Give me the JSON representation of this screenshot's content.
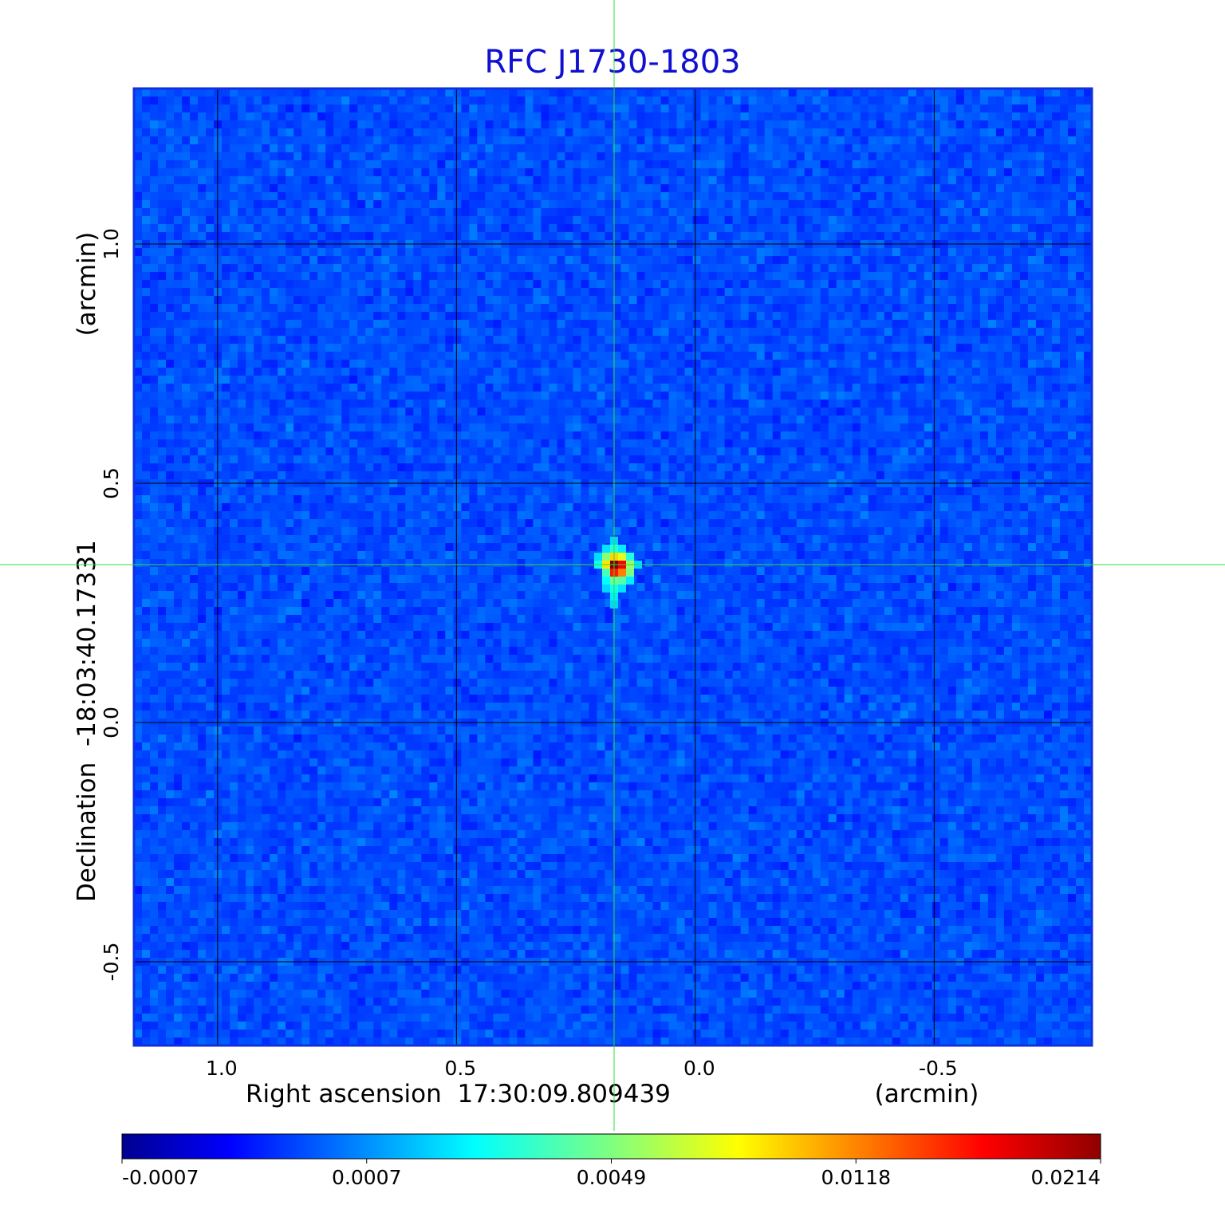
{
  "chart_data": {
    "type": "heatmap",
    "title": "RFC J1730-1803",
    "xlabel": "Right ascension  17:30:09.809439",
    "xunit": "(arcmin)",
    "ylabel": "Declination  -18:03:40.17331",
    "yunit": "(arcmin)",
    "x_ticks": [
      {
        "value": 1.0,
        "label": "1.0"
      },
      {
        "value": 0.5,
        "label": "0.5"
      },
      {
        "value": 0.0,
        "label": "0.0"
      },
      {
        "value": -0.5,
        "label": "-0.5"
      }
    ],
    "y_ticks": [
      {
        "value": 1.0,
        "label": "1.0"
      },
      {
        "value": 0.5,
        "label": "0.5"
      },
      {
        "value": 0.0,
        "label": "0.0"
      },
      {
        "value": -0.5,
        "label": "-0.5"
      }
    ],
    "xlim": [
      1.175,
      -0.83
    ],
    "ylim": [
      -0.675,
      1.325
    ],
    "grid": true,
    "colormap": "jet",
    "colorbar": {
      "labels": [
        "-0.0007",
        "0.0007",
        "0.0049",
        "0.0118",
        "0.0214"
      ],
      "range": [
        -0.0007,
        0.0214
      ]
    },
    "source": {
      "x": 0.17,
      "y": 0.33,
      "peak": 0.0214,
      "pixels": [
        {
          "dx": 0,
          "dy": 0,
          "v": 0.0214
        },
        {
          "dx": 1,
          "dy": 0,
          "v": 0.018
        },
        {
          "dx": 0,
          "dy": 1,
          "v": 0.017
        },
        {
          "dx": 1,
          "dy": 1,
          "v": 0.014
        },
        {
          "dx": -1,
          "dy": 0,
          "v": 0.011
        },
        {
          "dx": 0,
          "dy": -1,
          "v": 0.0115
        },
        {
          "dx": 1,
          "dy": -1,
          "v": 0.0095
        },
        {
          "dx": -1,
          "dy": -1,
          "v": 0.007
        },
        {
          "dx": 2,
          "dy": 0,
          "v": 0.0075
        },
        {
          "dx": 2,
          "dy": 1,
          "v": 0.0065
        },
        {
          "dx": 0,
          "dy": 2,
          "v": 0.006
        },
        {
          "dx": 1,
          "dy": 2,
          "v": 0.0055
        },
        {
          "dx": -1,
          "dy": 1,
          "v": 0.005
        },
        {
          "dx": -2,
          "dy": 0,
          "v": 0.0035
        },
        {
          "dx": 2,
          "dy": -1,
          "v": 0.004
        },
        {
          "dx": 0,
          "dy": -2,
          "v": 0.004
        },
        {
          "dx": -1,
          "dy": 2,
          "v": 0.003
        },
        {
          "dx": 0,
          "dy": 3,
          "v": 0.0035
        },
        {
          "dx": 0,
          "dy": 4,
          "v": 0.0025
        },
        {
          "dx": 1,
          "dy": 3,
          "v": 0.0022
        },
        {
          "dx": 0,
          "dy": 5,
          "v": 0.0018
        },
        {
          "dx": 2,
          "dy": 2,
          "v": 0.0025
        },
        {
          "dx": -1,
          "dy": -2,
          "v": 0.0022
        },
        {
          "dx": 1,
          "dy": -2,
          "v": 0.0025
        },
        {
          "dx": -2,
          "dy": -1,
          "v": 0.002
        },
        {
          "dx": 3,
          "dy": 0,
          "v": 0.002
        },
        {
          "dx": 0,
          "dy": -3,
          "v": 0.0018
        },
        {
          "dx": -1,
          "dy": 3,
          "v": 0.0018
        }
      ]
    },
    "crosshair": {
      "x": 0.17,
      "y": 0.33,
      "color": "#33dd33"
    },
    "colors": {
      "title": "#1010d0",
      "frame": "#1030e0",
      "grid": "#000000",
      "background_field": "#1a5cf0"
    }
  }
}
